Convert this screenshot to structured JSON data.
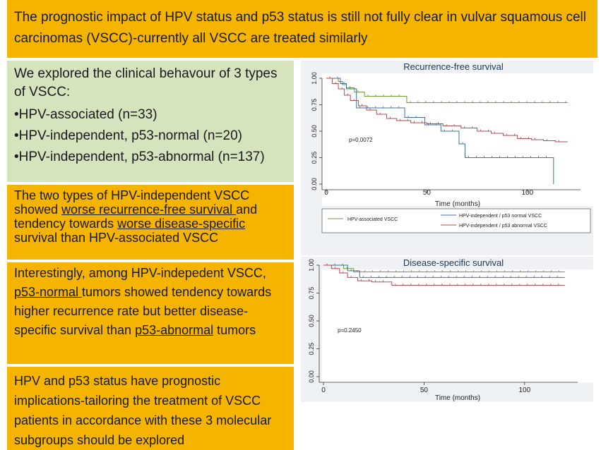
{
  "title": "The prognostic impact of HPV status and p53 status is still not fully clear in vulvar squamous cell carcinomas (VSCC)-currently all VSCC are treated similarly",
  "intro": {
    "text": "We explored the clinical behavour of 3 types of VSCC:",
    "items": [
      "•HPV-associated (n=33)",
      "•HPV-independent, p53-normal (n=20)",
      "•HPV-independent, p53-abnormal (n=137)"
    ]
  },
  "finding1": {
    "part1": "The two types of HPV-independent VSCC showed ",
    "u1": "worse recurrence-free survival ",
    "part2": "and tendency towards ",
    "u2": "worse disease-specific",
    "part3": " survival than HPV-associated VSCC"
  },
  "finding2": {
    "part1": "Interestingly, among HPV-indepedent VSCC, ",
    "u1": "p53-normal ",
    "part2": "tumors showed tendency towards higher recurrence rate but better disease-specific survival than ",
    "u2": "p53-abnormal",
    "part3": " tumors"
  },
  "conclusion": "HPV and p53 status have prognostic implications-tailoring the treatment  of VSCC patients in accordance with these 3 molecular subgroups should be explored",
  "colors": {
    "green_series": "#6f9a3c",
    "blue_series": "#3d6f9e",
    "red_series": "#b24a52",
    "orange_box": "#f5b400",
    "green_box": "#d6e3bf"
  },
  "chart_data": [
    {
      "type": "line",
      "chart_type_detail": "kaplan-meier",
      "title": "Recurrence-free survival",
      "xlabel": "Time (months)",
      "ylabel": "",
      "xlim": [
        0,
        125
      ],
      "ylim": [
        0,
        1
      ],
      "xticks": [
        "0",
        "50",
        "100"
      ],
      "yticks": [
        "0.00",
        "0.25",
        "0.50",
        "0.75",
        "1.00"
      ],
      "annotation": "p=0.0072",
      "legend": [
        "HPV-associated VSCC",
        "HPV-independent / p53 normal VSCC",
        "HPV-independent / p53 abnormal VSCC"
      ],
      "series": [
        {
          "name": "HPV-associated VSCC",
          "x": [
            0,
            6,
            8,
            10,
            14,
            19,
            40,
            120
          ],
          "y": [
            1.0,
            0.97,
            0.94,
            0.91,
            0.87,
            0.83,
            0.77,
            0.77
          ]
        },
        {
          "name": "HPV-independent / p53 normal VSCC",
          "x": [
            0,
            7,
            10,
            15,
            39,
            49,
            57,
            66,
            69,
            112,
            113
          ],
          "y": [
            1.0,
            0.95,
            0.9,
            0.72,
            0.63,
            0.56,
            0.5,
            0.38,
            0.25,
            0.25,
            0.0
          ]
        },
        {
          "name": "HPV-independent / p53 abnormal VSCC",
          "x": [
            0,
            3,
            6,
            9,
            12,
            16,
            20,
            25,
            30,
            35,
            42,
            50,
            58,
            67,
            75,
            82,
            88,
            95,
            102,
            108,
            114,
            120
          ],
          "y": [
            1.0,
            0.95,
            0.9,
            0.84,
            0.79,
            0.74,
            0.7,
            0.66,
            0.62,
            0.6,
            0.58,
            0.57,
            0.55,
            0.53,
            0.5,
            0.48,
            0.46,
            0.43,
            0.42,
            0.41,
            0.4,
            0.4
          ]
        }
      ]
    },
    {
      "type": "line",
      "chart_type_detail": "kaplan-meier",
      "title": "Disease-specific survival",
      "xlabel": "Time (months)",
      "ylabel": "",
      "xlim": [
        0,
        125
      ],
      "ylim": [
        0,
        1
      ],
      "xticks": [
        "0",
        "50",
        "100"
      ],
      "yticks": [
        "0.00",
        "0.25",
        "0.50",
        "0.75",
        "1.00"
      ],
      "annotation": "p=0.2450",
      "series": [
        {
          "name": "HPV-associated VSCC",
          "x": [
            0,
            10,
            15,
            120
          ],
          "y": [
            1.0,
            0.97,
            0.94,
            0.94
          ]
        },
        {
          "name": "HPV-independent / p53 normal VSCC",
          "x": [
            0,
            12,
            18,
            120
          ],
          "y": [
            1.0,
            0.95,
            0.89,
            0.89
          ]
        },
        {
          "name": "HPV-independent / p53 abnormal VSCC",
          "x": [
            0,
            4,
            8,
            12,
            17,
            24,
            34,
            120
          ],
          "y": [
            1.0,
            0.97,
            0.93,
            0.89,
            0.86,
            0.85,
            0.82,
            0.82
          ]
        }
      ]
    }
  ]
}
